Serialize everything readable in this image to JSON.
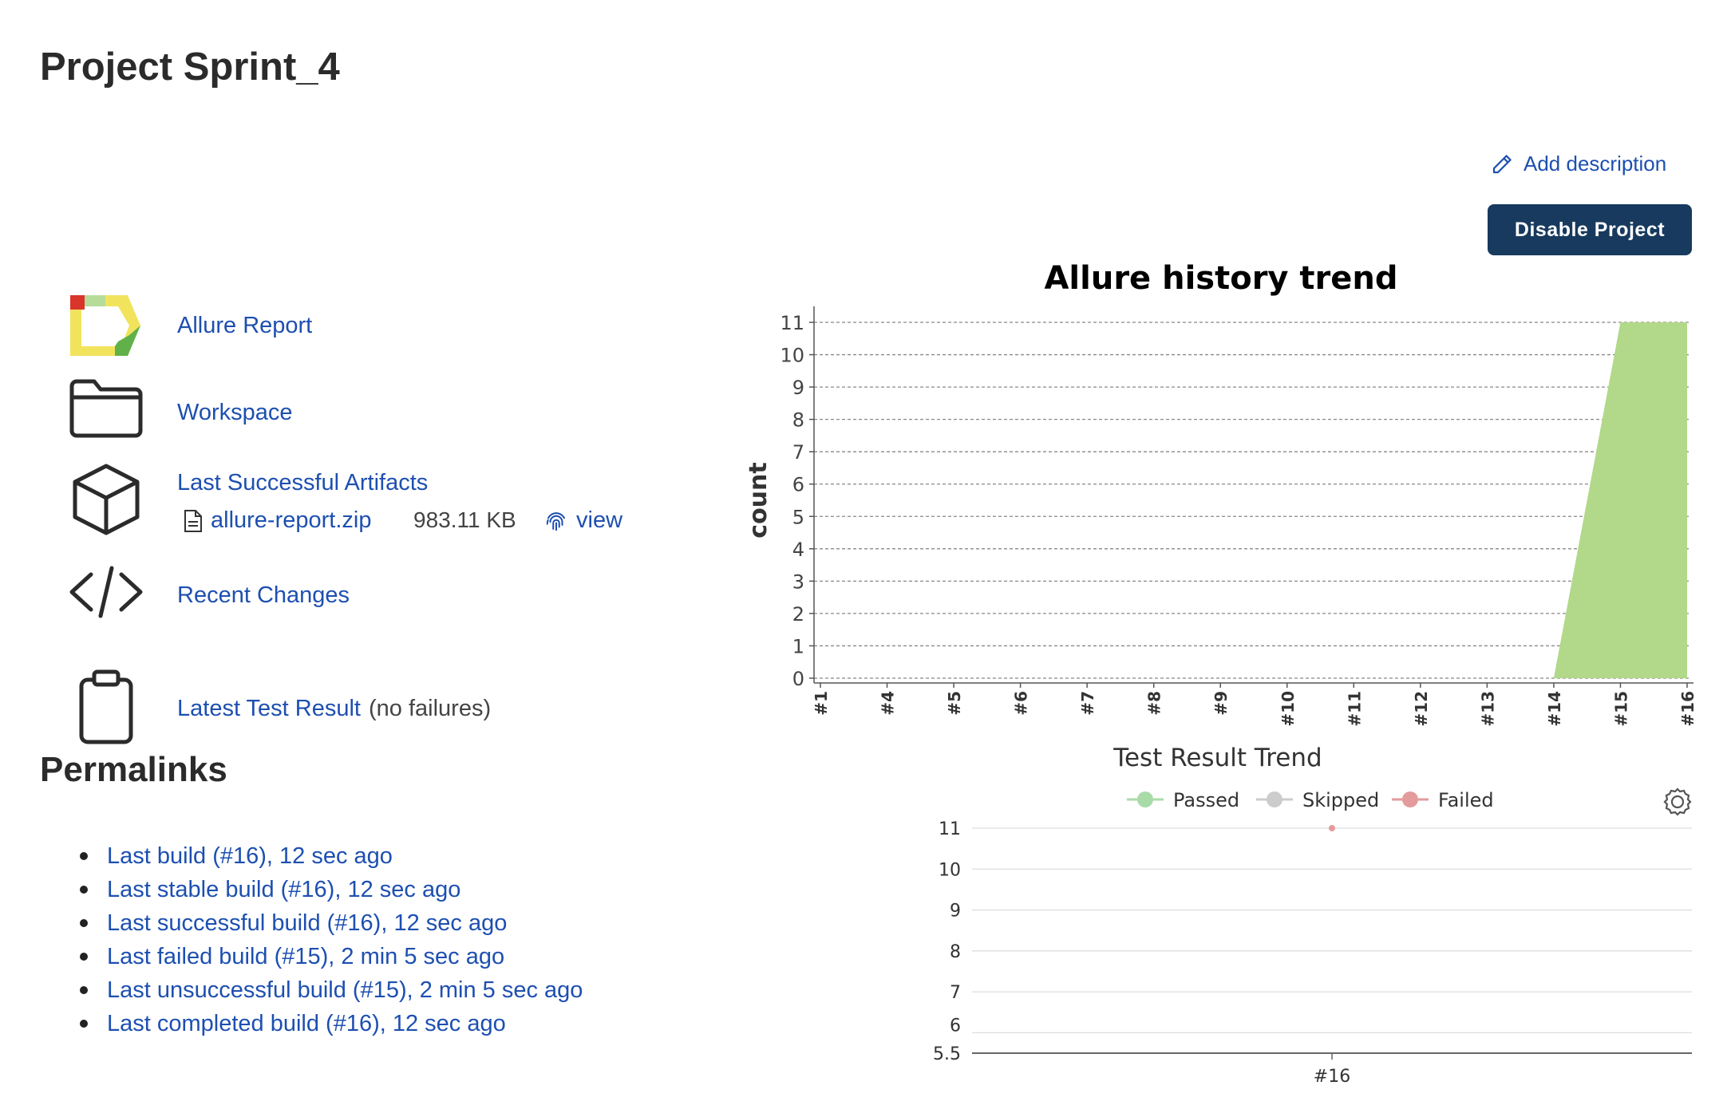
{
  "page": {
    "title": "Project Sprint_4"
  },
  "actions": {
    "add_description": "Add description",
    "disable_project": "Disable Project"
  },
  "sidebar": {
    "allure_report": "Allure Report",
    "workspace": "Workspace",
    "last_successful_artifacts": "Last Successful Artifacts",
    "artifact": {
      "name": "allure-report.zip",
      "size": "983.11 KB",
      "view": "view"
    },
    "recent_changes": "Recent Changes",
    "latest_test_result": "Latest Test Result",
    "latest_test_result_note": "(no failures)"
  },
  "permalinks": {
    "title": "Permalinks",
    "items": [
      "Last build (#16), 12 sec ago",
      "Last stable build (#16), 12 sec ago",
      "Last successful build (#16), 12 sec ago",
      "Last failed build (#15), 2 min 5 sec ago",
      "Last unsuccessful build (#15), 2 min 5 sec ago",
      "Last completed build (#16), 12 sec ago"
    ]
  },
  "chart_data": [
    {
      "type": "area",
      "title": "Allure history trend",
      "xlabel": "",
      "ylabel": "count",
      "categories": [
        "#1",
        "#4",
        "#5",
        "#6",
        "#7",
        "#8",
        "#9",
        "#10",
        "#11",
        "#12",
        "#13",
        "#14",
        "#15",
        "#16"
      ],
      "series": [
        {
          "values": [
            0,
            0,
            0,
            0,
            0,
            0,
            0,
            0,
            0,
            0,
            0,
            0,
            11,
            11
          ]
        }
      ],
      "ylim": [
        0,
        11
      ],
      "yticks": [
        "0",
        "1",
        "2",
        "3",
        "4",
        "5",
        "6",
        "7",
        "8",
        "9",
        "10",
        "11"
      ],
      "grid": true,
      "colors": {
        "area": "#b2d88a",
        "grid": "#888888"
      }
    },
    {
      "type": "line",
      "title": "Test Result Trend",
      "categories": [
        "#16"
      ],
      "series": [
        {
          "name": "Passed",
          "values": [
            null
          ]
        },
        {
          "name": "Skipped",
          "values": [
            null
          ]
        },
        {
          "name": "Failed",
          "values": [
            11
          ]
        }
      ],
      "ylim": [
        5.5,
        11
      ],
      "yticks": [
        "5.5",
        "6",
        "7",
        "8",
        "9",
        "10",
        "11"
      ],
      "legend": "top",
      "colors": {
        "Passed": "#a9dba9",
        "Skipped": "#cccccc",
        "Failed": "#e49b9b"
      }
    }
  ]
}
